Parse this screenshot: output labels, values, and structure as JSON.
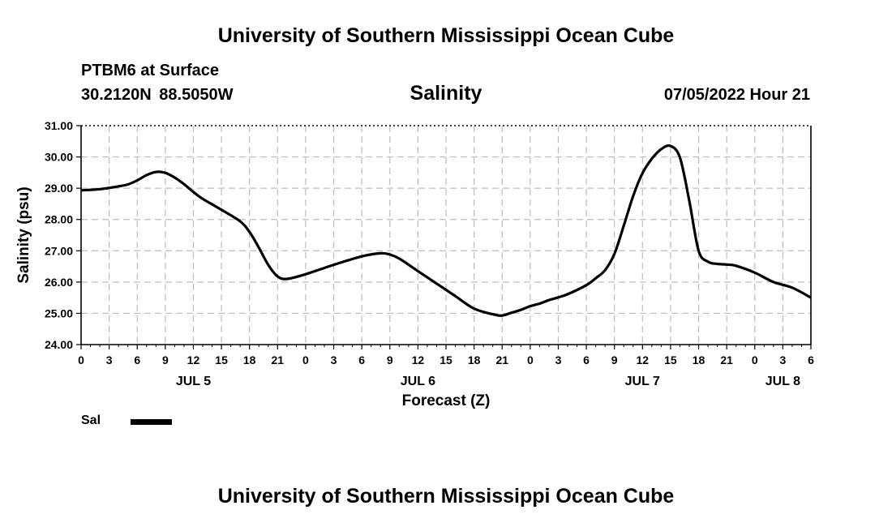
{
  "header": {
    "title": "University of Southern Mississippi Ocean Cube",
    "station": "PTBM6 at Surface",
    "coordinates": "30.2120N  88.5050W",
    "datetime": "07/05/2022 Hour 21",
    "footer_title": "University of Southern Mississippi Ocean Cube"
  },
  "legend": {
    "label": "Sal",
    "color": "#000000"
  },
  "chart_data": {
    "type": "line",
    "title": "Salinity",
    "xlabel": "Forecast (Z)",
    "ylabel": "Salinity (psu)",
    "ylim": [
      24.0,
      31.0
    ],
    "xlim_hours": [
      0,
      78
    ],
    "grid": true,
    "y_ticks": [
      "24.00",
      "25.00",
      "26.00",
      "27.00",
      "28.00",
      "29.00",
      "30.00",
      "31.00"
    ],
    "x_tick_labels": [
      "0",
      "3",
      "6",
      "9",
      "12",
      "15",
      "18",
      "21",
      "0",
      "3",
      "6",
      "9",
      "12",
      "15",
      "18",
      "21",
      "0",
      "3",
      "6",
      "9",
      "12",
      "15",
      "18",
      "21",
      "0",
      "3",
      "6"
    ],
    "day_labels": [
      {
        "label": "JUL 5",
        "hour": 12
      },
      {
        "label": "JUL 6",
        "hour": 36
      },
      {
        "label": "JUL 7",
        "hour": 60
      },
      {
        "label": "JUL 8",
        "hour": 75
      }
    ],
    "series": [
      {
        "name": "Sal",
        "x_hours": [
          0,
          2,
          4,
          5,
          6,
          7,
          8,
          9,
          10,
          11,
          12,
          13,
          15,
          17,
          18,
          19,
          20,
          21,
          22,
          24,
          27,
          30,
          32,
          33,
          34,
          36,
          38,
          40,
          42,
          44,
          45,
          46,
          47,
          48,
          49,
          50,
          51,
          52,
          54,
          55,
          56,
          57,
          58,
          59,
          60,
          61,
          62,
          63,
          64,
          65,
          66,
          67,
          68,
          69,
          70,
          72,
          74,
          76,
          78
        ],
        "values": [
          28.93,
          28.97,
          29.06,
          29.12,
          29.25,
          29.42,
          29.52,
          29.49,
          29.34,
          29.13,
          28.88,
          28.66,
          28.31,
          27.94,
          27.6,
          27.1,
          26.55,
          26.18,
          26.1,
          26.25,
          26.55,
          26.82,
          26.92,
          26.88,
          26.75,
          26.35,
          25.95,
          25.55,
          25.15,
          24.97,
          24.93,
          25.02,
          25.11,
          25.23,
          25.31,
          25.42,
          25.51,
          25.61,
          25.9,
          26.12,
          26.38,
          26.9,
          27.8,
          28.75,
          29.48,
          29.94,
          30.25,
          30.35,
          29.98,
          28.6,
          27.0,
          26.65,
          26.58,
          26.56,
          26.52,
          26.3,
          26.0,
          25.82,
          25.5
        ]
      }
    ]
  }
}
